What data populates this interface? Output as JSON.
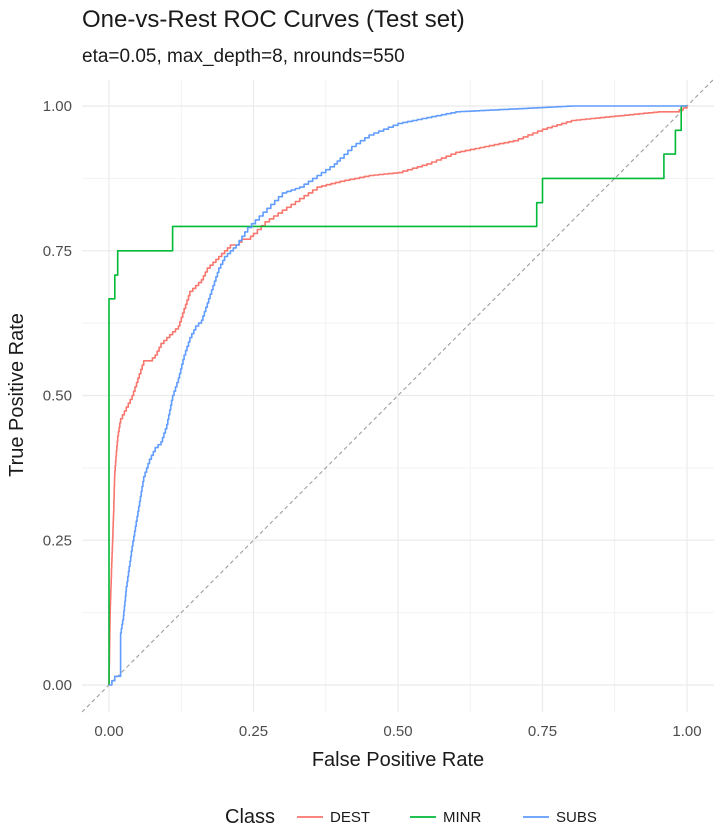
{
  "chart_data": {
    "type": "line",
    "title": "One-vs-Rest ROC Curves (Test set)",
    "subtitle": "eta=0.05, max_depth=8, nrounds=550",
    "xlabel": "False Positive Rate",
    "ylabel": "True Positive Rate",
    "xlim": [
      0,
      1
    ],
    "ylim": [
      0,
      1
    ],
    "xticks": [
      "0.00",
      "0.25",
      "0.50",
      "0.75",
      "1.00"
    ],
    "yticks": [
      "0.00",
      "0.25",
      "0.50",
      "0.75",
      "1.00"
    ],
    "grid": true,
    "legend": {
      "title": "Class",
      "position": "bottom"
    },
    "reference_line": {
      "style": "dashed",
      "color": "#9e9e9e",
      "x": [
        0,
        1
      ],
      "y": [
        0,
        1
      ]
    },
    "series": [
      {
        "name": "DEST",
        "color": "#F8766D",
        "step": false,
        "x": [
          0,
          0.002,
          0.005,
          0.008,
          0.01,
          0.015,
          0.02,
          0.03,
          0.04,
          0.05,
          0.06,
          0.07,
          0.08,
          0.09,
          0.1,
          0.11,
          0.12,
          0.13,
          0.14,
          0.15,
          0.16,
          0.17,
          0.18,
          0.19,
          0.2,
          0.21,
          0.22,
          0.23,
          0.24,
          0.25,
          0.27,
          0.3,
          0.33,
          0.36,
          0.4,
          0.45,
          0.5,
          0.55,
          0.6,
          0.65,
          0.7,
          0.75,
          0.8,
          0.85,
          0.9,
          0.95,
          0.98,
          1.0
        ],
        "y": [
          0,
          0.13,
          0.22,
          0.3,
          0.37,
          0.43,
          0.46,
          0.48,
          0.5,
          0.53,
          0.56,
          0.56,
          0.57,
          0.59,
          0.6,
          0.61,
          0.62,
          0.65,
          0.68,
          0.69,
          0.7,
          0.72,
          0.73,
          0.74,
          0.75,
          0.76,
          0.76,
          0.77,
          0.77,
          0.78,
          0.8,
          0.82,
          0.84,
          0.86,
          0.87,
          0.88,
          0.885,
          0.9,
          0.92,
          0.93,
          0.94,
          0.96,
          0.975,
          0.98,
          0.985,
          0.99,
          0.99,
          1.0
        ]
      },
      {
        "name": "MINR",
        "color": "#00BA38",
        "step": true,
        "x": [
          0,
          0,
          0.01,
          0.01,
          0.015,
          0.015,
          0.11,
          0.11,
          0.74,
          0.74,
          0.75,
          0.75,
          0.96,
          0.96,
          0.98,
          0.98,
          0.99,
          0.99,
          1.0
        ],
        "y": [
          0,
          0.667,
          0.667,
          0.708,
          0.708,
          0.75,
          0.75,
          0.792,
          0.792,
          0.833,
          0.833,
          0.875,
          0.875,
          0.917,
          0.917,
          0.958,
          0.958,
          1.0,
          1.0
        ]
      },
      {
        "name": "SUBS",
        "color": "#619CFF",
        "step": false,
        "x": [
          0,
          0.01,
          0.02,
          0.02,
          0.025,
          0.03,
          0.04,
          0.05,
          0.06,
          0.07,
          0.08,
          0.09,
          0.1,
          0.11,
          0.12,
          0.13,
          0.14,
          0.15,
          0.16,
          0.17,
          0.18,
          0.19,
          0.2,
          0.21,
          0.22,
          0.24,
          0.26,
          0.28,
          0.3,
          0.33,
          0.36,
          0.39,
          0.4,
          0.42,
          0.45,
          0.5,
          0.55,
          0.6,
          0.7,
          0.8,
          0.9,
          1.0
        ],
        "y": [
          0,
          0.015,
          0.015,
          0.09,
          0.12,
          0.17,
          0.24,
          0.3,
          0.36,
          0.39,
          0.41,
          0.42,
          0.45,
          0.5,
          0.53,
          0.57,
          0.6,
          0.62,
          0.63,
          0.66,
          0.69,
          0.72,
          0.74,
          0.75,
          0.76,
          0.79,
          0.81,
          0.83,
          0.85,
          0.86,
          0.88,
          0.9,
          0.91,
          0.93,
          0.95,
          0.97,
          0.98,
          0.99,
          0.995,
          1.0,
          1.0,
          1.0
        ]
      }
    ]
  }
}
